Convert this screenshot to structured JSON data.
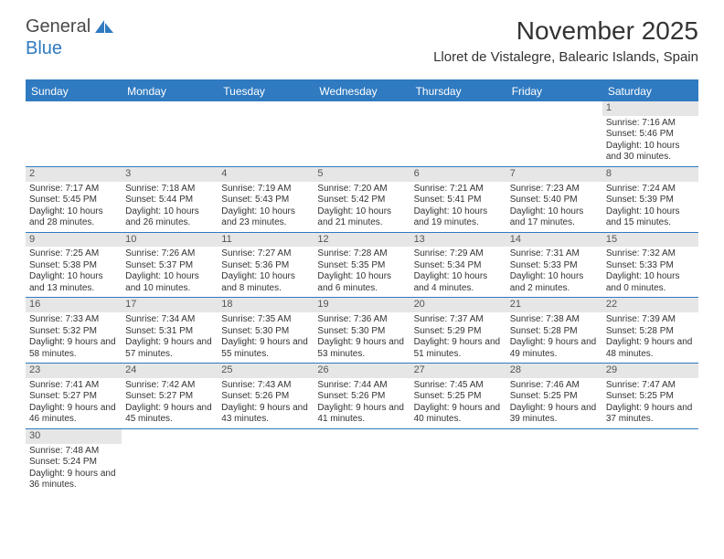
{
  "logo": {
    "text1": "General",
    "text2": "Blue"
  },
  "title": "November 2025",
  "location": "Lloret de Vistalegre, Balearic Islands, Spain",
  "colors": {
    "header_bg": "#2f7ac0",
    "header_text": "#ffffff",
    "daynum_bg": "#e6e6e6",
    "body_text": "#333333",
    "row_border": "#2f7ac0"
  },
  "day_headers": [
    "Sunday",
    "Monday",
    "Tuesday",
    "Wednesday",
    "Thursday",
    "Friday",
    "Saturday"
  ],
  "weeks": [
    [
      null,
      null,
      null,
      null,
      null,
      null,
      {
        "n": "1",
        "sunrise": "7:16 AM",
        "sunset": "5:46 PM",
        "daylight": "10 hours and 30 minutes."
      }
    ],
    [
      {
        "n": "2",
        "sunrise": "7:17 AM",
        "sunset": "5:45 PM",
        "daylight": "10 hours and 28 minutes."
      },
      {
        "n": "3",
        "sunrise": "7:18 AM",
        "sunset": "5:44 PM",
        "daylight": "10 hours and 26 minutes."
      },
      {
        "n": "4",
        "sunrise": "7:19 AM",
        "sunset": "5:43 PM",
        "daylight": "10 hours and 23 minutes."
      },
      {
        "n": "5",
        "sunrise": "7:20 AM",
        "sunset": "5:42 PM",
        "daylight": "10 hours and 21 minutes."
      },
      {
        "n": "6",
        "sunrise": "7:21 AM",
        "sunset": "5:41 PM",
        "daylight": "10 hours and 19 minutes."
      },
      {
        "n": "7",
        "sunrise": "7:23 AM",
        "sunset": "5:40 PM",
        "daylight": "10 hours and 17 minutes."
      },
      {
        "n": "8",
        "sunrise": "7:24 AM",
        "sunset": "5:39 PM",
        "daylight": "10 hours and 15 minutes."
      }
    ],
    [
      {
        "n": "9",
        "sunrise": "7:25 AM",
        "sunset": "5:38 PM",
        "daylight": "10 hours and 13 minutes."
      },
      {
        "n": "10",
        "sunrise": "7:26 AM",
        "sunset": "5:37 PM",
        "daylight": "10 hours and 10 minutes."
      },
      {
        "n": "11",
        "sunrise": "7:27 AM",
        "sunset": "5:36 PM",
        "daylight": "10 hours and 8 minutes."
      },
      {
        "n": "12",
        "sunrise": "7:28 AM",
        "sunset": "5:35 PM",
        "daylight": "10 hours and 6 minutes."
      },
      {
        "n": "13",
        "sunrise": "7:29 AM",
        "sunset": "5:34 PM",
        "daylight": "10 hours and 4 minutes."
      },
      {
        "n": "14",
        "sunrise": "7:31 AM",
        "sunset": "5:33 PM",
        "daylight": "10 hours and 2 minutes."
      },
      {
        "n": "15",
        "sunrise": "7:32 AM",
        "sunset": "5:33 PM",
        "daylight": "10 hours and 0 minutes."
      }
    ],
    [
      {
        "n": "16",
        "sunrise": "7:33 AM",
        "sunset": "5:32 PM",
        "daylight": "9 hours and 58 minutes."
      },
      {
        "n": "17",
        "sunrise": "7:34 AM",
        "sunset": "5:31 PM",
        "daylight": "9 hours and 57 minutes."
      },
      {
        "n": "18",
        "sunrise": "7:35 AM",
        "sunset": "5:30 PM",
        "daylight": "9 hours and 55 minutes."
      },
      {
        "n": "19",
        "sunrise": "7:36 AM",
        "sunset": "5:30 PM",
        "daylight": "9 hours and 53 minutes."
      },
      {
        "n": "20",
        "sunrise": "7:37 AM",
        "sunset": "5:29 PM",
        "daylight": "9 hours and 51 minutes."
      },
      {
        "n": "21",
        "sunrise": "7:38 AM",
        "sunset": "5:28 PM",
        "daylight": "9 hours and 49 minutes."
      },
      {
        "n": "22",
        "sunrise": "7:39 AM",
        "sunset": "5:28 PM",
        "daylight": "9 hours and 48 minutes."
      }
    ],
    [
      {
        "n": "23",
        "sunrise": "7:41 AM",
        "sunset": "5:27 PM",
        "daylight": "9 hours and 46 minutes."
      },
      {
        "n": "24",
        "sunrise": "7:42 AM",
        "sunset": "5:27 PM",
        "daylight": "9 hours and 45 minutes."
      },
      {
        "n": "25",
        "sunrise": "7:43 AM",
        "sunset": "5:26 PM",
        "daylight": "9 hours and 43 minutes."
      },
      {
        "n": "26",
        "sunrise": "7:44 AM",
        "sunset": "5:26 PM",
        "daylight": "9 hours and 41 minutes."
      },
      {
        "n": "27",
        "sunrise": "7:45 AM",
        "sunset": "5:25 PM",
        "daylight": "9 hours and 40 minutes."
      },
      {
        "n": "28",
        "sunrise": "7:46 AM",
        "sunset": "5:25 PM",
        "daylight": "9 hours and 39 minutes."
      },
      {
        "n": "29",
        "sunrise": "7:47 AM",
        "sunset": "5:25 PM",
        "daylight": "9 hours and 37 minutes."
      }
    ],
    [
      {
        "n": "30",
        "sunrise": "7:48 AM",
        "sunset": "5:24 PM",
        "daylight": "9 hours and 36 minutes."
      },
      null,
      null,
      null,
      null,
      null,
      null
    ]
  ],
  "labels": {
    "sunrise": "Sunrise: ",
    "sunset": "Sunset: ",
    "daylight": "Daylight: "
  }
}
